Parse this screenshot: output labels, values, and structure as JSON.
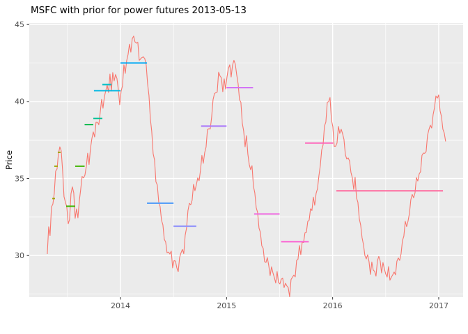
{
  "chart_data": {
    "type": "line",
    "title": "MSFC with prior for power futures 2013-05-13",
    "xlabel": "",
    "ylabel": "Price",
    "x_ticks": [
      2014,
      2015,
      2016,
      2017
    ],
    "x_minor": [
      2013.5,
      2014.5,
      2015.5,
      2016.5
    ],
    "y_ticks": [
      30,
      35,
      40,
      45
    ],
    "y_minor": [
      27.5,
      32.5,
      37.5,
      42.5
    ],
    "xlim": [
      2013.14,
      2017.23
    ],
    "ylim": [
      27.3,
      45.1
    ],
    "grid": true,
    "legend": "none",
    "style": {
      "panel_bg": "#EBEBEB",
      "grid_color": "#FFFFFF",
      "axis_text_color": "#4D4D4D",
      "tick_color": "#333333",
      "title_color": "#000000"
    },
    "series": [
      {
        "name": "MSFC",
        "color": "#F8766D",
        "points": [
          [
            2013.31,
            30.1
          ],
          [
            2013.325,
            31.9
          ],
          [
            2013.34,
            31.3
          ],
          [
            2013.35,
            33.0
          ],
          [
            2013.36,
            33.7
          ],
          [
            2013.37,
            33.1
          ],
          [
            2013.38,
            34.6
          ],
          [
            2013.39,
            35.8
          ],
          [
            2013.4,
            35.3
          ],
          [
            2013.41,
            36.4
          ],
          [
            2013.42,
            37.2
          ],
          [
            2013.43,
            36.7
          ],
          [
            2013.44,
            37.1
          ],
          [
            2013.45,
            36.0
          ],
          [
            2013.46,
            34.7
          ],
          [
            2013.47,
            33.9
          ],
          [
            2013.48,
            33.2
          ],
          [
            2013.49,
            33.7
          ],
          [
            2013.5,
            32.6
          ],
          [
            2013.51,
            31.7
          ],
          [
            2013.52,
            32.5
          ],
          [
            2013.53,
            33.5
          ],
          [
            2013.54,
            34.4
          ],
          [
            2013.55,
            34.8
          ],
          [
            2013.56,
            34.0
          ],
          [
            2013.57,
            32.7
          ],
          [
            2013.58,
            32.2
          ],
          [
            2013.59,
            33.2
          ],
          [
            2013.6,
            32.4
          ],
          [
            2013.615,
            33.6
          ],
          [
            2013.63,
            34.7
          ],
          [
            2013.645,
            35.3
          ],
          [
            2013.66,
            34.8
          ],
          [
            2013.675,
            35.9
          ],
          [
            2013.69,
            36.5
          ],
          [
            2013.705,
            35.9
          ],
          [
            2013.72,
            37.1
          ],
          [
            2013.735,
            38.2
          ],
          [
            2013.75,
            37.6
          ],
          [
            2013.765,
            38.4
          ],
          [
            2013.78,
            38.9
          ],
          [
            2013.795,
            38.4
          ],
          [
            2013.81,
            39.4
          ],
          [
            2013.825,
            40.1
          ],
          [
            2013.84,
            39.6
          ],
          [
            2013.855,
            40.7
          ],
          [
            2013.87,
            41.2
          ],
          [
            2013.885,
            40.5
          ],
          [
            2013.9,
            41.6
          ],
          [
            2013.915,
            40.9
          ],
          [
            2013.93,
            41.9
          ],
          [
            2013.945,
            41.2
          ],
          [
            2013.96,
            42.0
          ],
          [
            2013.975,
            41.1
          ],
          [
            2013.99,
            39.9
          ],
          [
            2014.005,
            40.4
          ],
          [
            2014.02,
            41.3
          ],
          [
            2014.035,
            42.3
          ],
          [
            2014.05,
            41.7
          ],
          [
            2014.065,
            42.9
          ],
          [
            2014.08,
            43.6
          ],
          [
            2014.095,
            43.1
          ],
          [
            2014.11,
            44.0
          ],
          [
            2014.125,
            44.3
          ],
          [
            2014.14,
            43.6
          ],
          [
            2014.155,
            44.1
          ],
          [
            2014.17,
            43.3
          ],
          [
            2014.185,
            42.5
          ],
          [
            2014.2,
            43.2
          ],
          [
            2014.215,
            42.6
          ],
          [
            2014.23,
            42.9
          ],
          [
            2014.245,
            42.0
          ],
          [
            2014.26,
            40.9
          ],
          [
            2014.275,
            39.7
          ],
          [
            2014.29,
            38.4
          ],
          [
            2014.305,
            37.1
          ],
          [
            2014.32,
            36.1
          ],
          [
            2014.335,
            35.0
          ],
          [
            2014.35,
            34.3
          ],
          [
            2014.365,
            33.4
          ],
          [
            2014.38,
            32.8
          ],
          [
            2014.395,
            32.1
          ],
          [
            2014.41,
            31.4
          ],
          [
            2014.425,
            30.8
          ],
          [
            2014.44,
            30.3
          ],
          [
            2014.455,
            29.9
          ],
          [
            2014.47,
            30.5
          ],
          [
            2014.485,
            29.6
          ],
          [
            2014.5,
            29.3
          ],
          [
            2014.515,
            30.0
          ],
          [
            2014.53,
            29.1
          ],
          [
            2014.545,
            29.0
          ],
          [
            2014.56,
            29.8
          ],
          [
            2014.575,
            30.5
          ],
          [
            2014.59,
            29.9
          ],
          [
            2014.605,
            31.0
          ],
          [
            2014.62,
            31.8
          ],
          [
            2014.635,
            32.6
          ],
          [
            2014.65,
            33.5
          ],
          [
            2014.665,
            32.9
          ],
          [
            2014.68,
            34.0
          ],
          [
            2014.695,
            34.7
          ],
          [
            2014.71,
            34.1
          ],
          [
            2014.725,
            35.3
          ],
          [
            2014.74,
            34.7
          ],
          [
            2014.755,
            35.8
          ],
          [
            2014.77,
            36.5
          ],
          [
            2014.785,
            35.9
          ],
          [
            2014.8,
            36.9
          ],
          [
            2014.815,
            37.8
          ],
          [
            2014.83,
            38.6
          ],
          [
            2014.845,
            38.0
          ],
          [
            2014.86,
            39.1
          ],
          [
            2014.875,
            40.0
          ],
          [
            2014.89,
            40.9
          ],
          [
            2014.905,
            40.3
          ],
          [
            2014.92,
            41.5
          ],
          [
            2014.935,
            42.1
          ],
          [
            2014.95,
            41.3
          ],
          [
            2014.965,
            40.7
          ],
          [
            2014.98,
            41.4
          ],
          [
            2014.995,
            40.8
          ],
          [
            2015.01,
            42.0
          ],
          [
            2015.025,
            42.4
          ],
          [
            2015.04,
            41.7
          ],
          [
            2015.055,
            42.2
          ],
          [
            2015.07,
            42.8
          ],
          [
            2015.085,
            42.2
          ],
          [
            2015.1,
            41.6
          ],
          [
            2015.115,
            40.7
          ],
          [
            2015.13,
            40.1
          ],
          [
            2015.145,
            39.1
          ],
          [
            2015.16,
            38.1
          ],
          [
            2015.175,
            37.1
          ],
          [
            2015.19,
            37.7
          ],
          [
            2015.205,
            36.3
          ],
          [
            2015.22,
            35.4
          ],
          [
            2015.235,
            36.1
          ],
          [
            2015.25,
            34.9
          ],
          [
            2015.265,
            34.0
          ],
          [
            2015.28,
            33.2
          ],
          [
            2015.295,
            32.4
          ],
          [
            2015.31,
            31.7
          ],
          [
            2015.325,
            31.1
          ],
          [
            2015.34,
            30.5
          ],
          [
            2015.355,
            29.9
          ],
          [
            2015.37,
            29.4
          ],
          [
            2015.385,
            30.0
          ],
          [
            2015.4,
            29.1
          ],
          [
            2015.415,
            28.7
          ],
          [
            2015.43,
            29.3
          ],
          [
            2015.445,
            28.6
          ],
          [
            2015.46,
            28.3
          ],
          [
            2015.475,
            28.9
          ],
          [
            2015.49,
            28.3
          ],
          [
            2015.505,
            28.0
          ],
          [
            2015.52,
            28.7
          ],
          [
            2015.535,
            28.1
          ],
          [
            2015.55,
            27.9
          ],
          [
            2015.565,
            28.3
          ],
          [
            2015.58,
            27.7
          ],
          [
            2015.595,
            27.6
          ],
          [
            2015.61,
            28.3
          ],
          [
            2015.625,
            28.9
          ],
          [
            2015.64,
            28.5
          ],
          [
            2015.655,
            29.3
          ],
          [
            2015.67,
            29.9
          ],
          [
            2015.685,
            30.4
          ],
          [
            2015.7,
            30.2
          ],
          [
            2015.715,
            30.9
          ],
          [
            2015.73,
            31.1
          ],
          [
            2015.745,
            31.3
          ],
          [
            2015.76,
            31.9
          ],
          [
            2015.775,
            32.4
          ],
          [
            2015.79,
            32.7
          ],
          [
            2015.805,
            33.1
          ],
          [
            2015.82,
            33.6
          ],
          [
            2015.835,
            33.5
          ],
          [
            2015.85,
            34.0
          ],
          [
            2015.865,
            34.8
          ],
          [
            2015.88,
            35.7
          ],
          [
            2015.895,
            36.6
          ],
          [
            2015.91,
            37.4
          ],
          [
            2015.925,
            38.3
          ],
          [
            2015.94,
            39.2
          ],
          [
            2015.955,
            40.0
          ],
          [
            2015.97,
            40.4
          ],
          [
            2015.985,
            39.3
          ],
          [
            2016.0,
            38.3
          ],
          [
            2016.015,
            37.2
          ],
          [
            2016.03,
            36.9
          ],
          [
            2016.045,
            37.8
          ],
          [
            2016.06,
            38.4
          ],
          [
            2016.075,
            37.7
          ],
          [
            2016.09,
            38.3
          ],
          [
            2016.105,
            37.5
          ],
          [
            2016.12,
            36.8
          ],
          [
            2016.135,
            36.1
          ],
          [
            2016.15,
            36.6
          ],
          [
            2016.165,
            35.8
          ],
          [
            2016.18,
            35.1
          ],
          [
            2016.195,
            34.4
          ],
          [
            2016.21,
            34.9
          ],
          [
            2016.225,
            34.0
          ],
          [
            2016.24,
            33.2
          ],
          [
            2016.255,
            32.4
          ],
          [
            2016.27,
            31.6
          ],
          [
            2016.285,
            30.9
          ],
          [
            2016.3,
            30.2
          ],
          [
            2016.315,
            29.6
          ],
          [
            2016.33,
            30.2
          ],
          [
            2016.345,
            29.3
          ],
          [
            2016.36,
            28.9
          ],
          [
            2016.375,
            29.6
          ],
          [
            2016.39,
            29.0
          ],
          [
            2016.405,
            28.7
          ],
          [
            2016.42,
            29.4
          ],
          [
            2016.435,
            30.1
          ],
          [
            2016.45,
            29.4
          ],
          [
            2016.465,
            28.9
          ],
          [
            2016.48,
            29.7
          ],
          [
            2016.495,
            28.8
          ],
          [
            2016.51,
            28.5
          ],
          [
            2016.525,
            29.2
          ],
          [
            2016.54,
            28.5
          ],
          [
            2016.555,
            28.4
          ],
          [
            2016.57,
            29.1
          ],
          [
            2016.585,
            28.5
          ],
          [
            2016.6,
            29.3
          ],
          [
            2016.615,
            30.0
          ],
          [
            2016.63,
            29.5
          ],
          [
            2016.645,
            30.4
          ],
          [
            2016.66,
            31.0
          ],
          [
            2016.675,
            31.7
          ],
          [
            2016.69,
            32.3
          ],
          [
            2016.705,
            31.8
          ],
          [
            2016.72,
            32.8
          ],
          [
            2016.735,
            33.5
          ],
          [
            2016.75,
            34.1
          ],
          [
            2016.765,
            33.6
          ],
          [
            2016.78,
            34.5
          ],
          [
            2016.795,
            35.1
          ],
          [
            2016.81,
            34.7
          ],
          [
            2016.825,
            35.5
          ],
          [
            2016.84,
            36.2
          ],
          [
            2016.855,
            36.9
          ],
          [
            2016.87,
            36.4
          ],
          [
            2016.885,
            37.2
          ],
          [
            2016.9,
            37.9
          ],
          [
            2016.915,
            38.6
          ],
          [
            2016.93,
            38.1
          ],
          [
            2016.945,
            39.0
          ],
          [
            2016.96,
            39.7
          ],
          [
            2016.975,
            40.2
          ],
          [
            2016.99,
            40.5
          ],
          [
            2017.005,
            40.1
          ],
          [
            2017.02,
            39.3
          ],
          [
            2017.035,
            38.5
          ],
          [
            2017.05,
            37.9
          ],
          [
            2017.065,
            37.4
          ]
        ]
      }
    ],
    "prior_segments": [
      {
        "x1": 2013.357,
        "x2": 2013.383,
        "price": 33.7,
        "color": "#9DA700"
      },
      {
        "x1": 2013.376,
        "x2": 2013.409,
        "price": 35.8,
        "color": "#9DA700"
      },
      {
        "x1": 2013.409,
        "x2": 2013.435,
        "price": 36.7,
        "color": "#9DA700"
      },
      {
        "x1": 2013.488,
        "x2": 2013.573,
        "price": 33.2,
        "color": "#3FB500"
      },
      {
        "x1": 2013.573,
        "x2": 2013.662,
        "price": 35.8,
        "color": "#3FB500"
      },
      {
        "x1": 2013.662,
        "x2": 2013.744,
        "price": 38.5,
        "color": "#00BA4C"
      },
      {
        "x1": 2013.744,
        "x2": 2013.829,
        "price": 38.9,
        "color": "#00C096"
      },
      {
        "x1": 2013.829,
        "x2": 2013.915,
        "price": 41.1,
        "color": "#00BFC8"
      },
      {
        "x1": 2013.75,
        "x2": 2014.0,
        "price": 40.7,
        "color": "#00B8E3"
      },
      {
        "x1": 2014.0,
        "x2": 2014.25,
        "price": 42.5,
        "color": "#00A9F4"
      },
      {
        "x1": 2014.25,
        "x2": 2014.5,
        "price": 33.4,
        "color": "#569FF8"
      },
      {
        "x1": 2014.5,
        "x2": 2014.715,
        "price": 31.9,
        "color": "#9193FB"
      },
      {
        "x1": 2014.76,
        "x2": 2015.0,
        "price": 38.4,
        "color": "#AD7DFA"
      },
      {
        "x1": 2015.0,
        "x2": 2015.25,
        "price": 40.9,
        "color": "#D273F6"
      },
      {
        "x1": 2015.26,
        "x2": 2015.5,
        "price": 32.7,
        "color": "#EF67E1"
      },
      {
        "x1": 2015.515,
        "x2": 2015.775,
        "price": 30.9,
        "color": "#FB61D2"
      },
      {
        "x1": 2015.74,
        "x2": 2016.005,
        "price": 37.3,
        "color": "#FF62BA"
      },
      {
        "x1": 2016.035,
        "x2": 2017.04,
        "price": 34.2,
        "color": "#FF6B9E"
      }
    ]
  }
}
